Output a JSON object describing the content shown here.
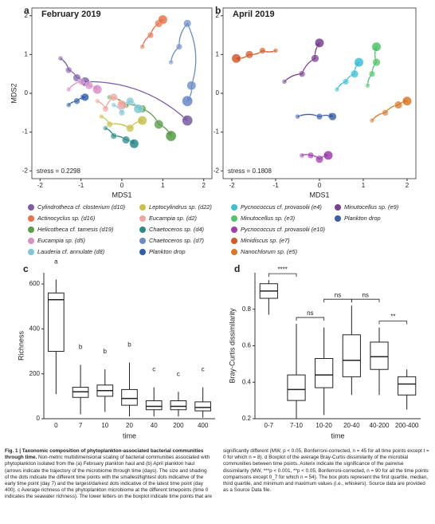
{
  "chart_data": [
    {
      "type": "scatter",
      "panel": "a",
      "title": "February 2019",
      "xlabel": "MDS1",
      "ylabel": "MDS2",
      "annotation": "stress = 0.2298",
      "xlim": [
        -2.2,
        2.2
      ],
      "ylim": [
        -2.2,
        2.2
      ],
      "xticks": [
        -2,
        -1,
        0,
        1,
        2
      ],
      "yticks": [
        -2,
        -1,
        0,
        1,
        2
      ],
      "series": [
        {
          "name": "Cylindrotheca cf. closterium (d10)",
          "color": "#7b5ea7",
          "x": [
            -1.5,
            -1.3,
            -1.1,
            -0.9,
            1.6
          ],
          "values": [
            0.9,
            0.6,
            0.4,
            0.3,
            -0.7
          ]
        },
        {
          "name": "Actinocyclus sp. (d16)",
          "color": "#e8734a",
          "x": [
            0.5,
            0.7,
            0.9,
            1.0
          ],
          "values": [
            1.2,
            1.5,
            1.8,
            1.9
          ]
        },
        {
          "name": "Helicotheca cf. tamesis (d19)",
          "color": "#5a9e4b",
          "x": [
            -0.3,
            0.1,
            0.5,
            0.9,
            1.2
          ],
          "values": [
            -0.1,
            -0.3,
            -0.4,
            -0.8,
            -1.1
          ]
        },
        {
          "name": "Eucampia sp. (d5)",
          "color": "#d98fc9",
          "x": [
            -1.3,
            -1.0,
            -0.8,
            -0.6
          ],
          "values": [
            0.1,
            0.3,
            0.2,
            0.1
          ]
        },
        {
          "name": "Lauderia cf. annulate (d8)",
          "color": "#7fc8d8",
          "x": [
            -0.2,
            0.0,
            0.2,
            0.4
          ],
          "values": [
            -0.3,
            -0.5,
            -0.2,
            -0.4
          ]
        },
        {
          "name": "Leptocylindrus sp. (d22)",
          "color": "#c8c14a",
          "x": [
            -0.5,
            -0.3,
            0.2,
            0.5
          ],
          "values": [
            -0.6,
            -0.8,
            -0.9,
            -0.7
          ]
        },
        {
          "name": "Eucampia sp. (d2)",
          "color": "#f0a6a0",
          "x": [
            -0.6,
            -0.4,
            -0.2,
            0.0
          ],
          "values": [
            -0.2,
            -0.4,
            -0.1,
            -0.3
          ]
        },
        {
          "name": "Chaetoceros sp. (d4)",
          "color": "#2a8a8a",
          "x": [
            -0.4,
            -0.2,
            0.1,
            0.3
          ],
          "values": [
            -0.9,
            -1.1,
            -1.2,
            -1.3
          ]
        },
        {
          "name": "Chaetoceros sp. (d7)",
          "color": "#6a8cc7",
          "x": [
            1.2,
            1.4,
            1.6,
            1.7,
            1.6
          ],
          "values": [
            0.8,
            1.2,
            1.8,
            0.2,
            -0.2
          ]
        },
        {
          "name": "Plankton drop",
          "color": "#2e5fa8",
          "x": [
            -1.3,
            -1.1,
            -0.9
          ],
          "values": [
            -0.3,
            -0.2,
            -0.1
          ]
        }
      ]
    },
    {
      "type": "scatter",
      "panel": "b",
      "title": "April 2019",
      "xlabel": "MDS1",
      "annotation": "stress = 0.1808",
      "xlim": [
        -2.2,
        2.2
      ],
      "ylim": [
        -2.2,
        2.2
      ],
      "xticks": [
        -2,
        -1,
        0,
        1,
        2
      ],
      "yticks": [
        -2,
        -1,
        0,
        1,
        2
      ],
      "series": [
        {
          "name": "Pycnococcus cf. provasolii (e4)",
          "color": "#3bbfd6",
          "x": [
            0.4,
            0.6,
            0.8,
            0.9
          ],
          "values": [
            0.1,
            0.3,
            0.5,
            0.8
          ]
        },
        {
          "name": "Minutocellus sp. (e3)",
          "color": "#4fc46a",
          "x": [
            1.1,
            1.2,
            1.3,
            1.3
          ],
          "values": [
            0.2,
            0.5,
            0.8,
            1.2
          ]
        },
        {
          "name": "Pycnococcus cf. provasolii (e10)",
          "color": "#a03db0",
          "x": [
            -0.4,
            -0.2,
            0.0,
            0.2
          ],
          "values": [
            -1.6,
            -1.6,
            -1.7,
            -1.6
          ]
        },
        {
          "name": "Minidiscus sp. (e7)",
          "color": "#d25a2a",
          "x": [
            -1.0,
            -1.3,
            -1.6,
            -1.9
          ],
          "values": [
            1.1,
            1.1,
            1.0,
            0.9
          ]
        },
        {
          "name": "Nanochlorum sp. (e5)",
          "color": "#d97a2a",
          "x": [
            1.2,
            1.5,
            1.8,
            2.0
          ],
          "values": [
            -0.7,
            -0.5,
            -0.3,
            -0.2
          ]
        },
        {
          "name": "Minutocellus sp. (e9)",
          "color": "#7a3f8f",
          "x": [
            -0.8,
            -0.4,
            -0.1,
            0.0
          ],
          "values": [
            0.3,
            0.5,
            0.9,
            1.3
          ]
        },
        {
          "name": "Plankton drop",
          "color": "#3a5fa8",
          "x": [
            -0.5,
            0.0,
            0.3
          ],
          "values": [
            -0.6,
            -0.6,
            -0.6
          ]
        }
      ]
    },
    {
      "type": "box",
      "panel": "c",
      "xlabel": "time",
      "ylabel": "Richness",
      "ylim": [
        0,
        650
      ],
      "yticks": [
        0,
        200,
        400,
        600
      ],
      "categories": [
        "0",
        "7",
        "10",
        "20",
        "40",
        "200",
        "400"
      ],
      "min": [
        110,
        20,
        30,
        10,
        10,
        10,
        5
      ],
      "q1": [
        300,
        95,
        100,
        60,
        40,
        40,
        35
      ],
      "median": [
        530,
        120,
        125,
        90,
        55,
        55,
        50
      ],
      "q3": [
        560,
        140,
        150,
        130,
        80,
        80,
        75
      ],
      "max": [
        620,
        240,
        220,
        250,
        140,
        120,
        140
      ],
      "group_labels": [
        "a",
        "b",
        "b",
        "b",
        "c",
        "c",
        "c"
      ]
    },
    {
      "type": "box",
      "panel": "d",
      "xlabel": "time",
      "ylabel": "Bray-Curtis dissimilarity",
      "ylim": [
        0.2,
        1.0
      ],
      "yticks": [
        0.2,
        0.4,
        0.6,
        0.8
      ],
      "categories": [
        "0-7",
        "7-10",
        "10-20",
        "20-40",
        "40-200",
        "200-400"
      ],
      "min": [
        0.77,
        0.2,
        0.22,
        0.33,
        0.33,
        0.25
      ],
      "q1": [
        0.86,
        0.3,
        0.37,
        0.43,
        0.47,
        0.33
      ],
      "median": [
        0.9,
        0.36,
        0.44,
        0.52,
        0.54,
        0.39
      ],
      "q3": [
        0.94,
        0.44,
        0.53,
        0.66,
        0.62,
        0.43
      ],
      "max": [
        0.96,
        0.72,
        0.7,
        0.82,
        0.7,
        0.47
      ],
      "comparisons": [
        "****",
        "ns",
        "ns",
        "ns",
        "**"
      ]
    }
  ],
  "caption": {
    "label": "Fig. 1 | Taxonomic composition of phytoplankton-associated bacterial communities through time.",
    "body": "Non-metric multidimensional scaling of bacterial communities associated with phytoplankton isolated from the (a) February plankton haul and (b) April plankton haul (arrows indicate the trajectory of the microbiome through time (days). The size and shading of the dots indicate the different time points with the smallest/lightest dots indicative of the early time point (day 7) and the largest/darkest dots indicative of the latest time point (day 400). c Average richness of the phytoplankton microbiome at the different timepoints (time 0 indicates the seawater richness). The lower letters on the boxplot indicate time points that are significantly different (MW, p < 0.05, Bonferroni-corrected, n = 45 for all time points except t = 0 for which n = 8). d Boxplot of the average Bray-Curtis dissimilarity of the microbial communities between time points. Asterix indicate the significance of the pairwise dissimilarity (MW, ***p < 0.001, **p < 0.05, Bonferroni-corrected, n = 90 for all the time points comparisons except 0_7 for which n = 54). The box plots represent the first quartile, median, third quartile, and minimum and maximum values (i.e., whiskers). Source data are provided as a Source Data file."
  }
}
